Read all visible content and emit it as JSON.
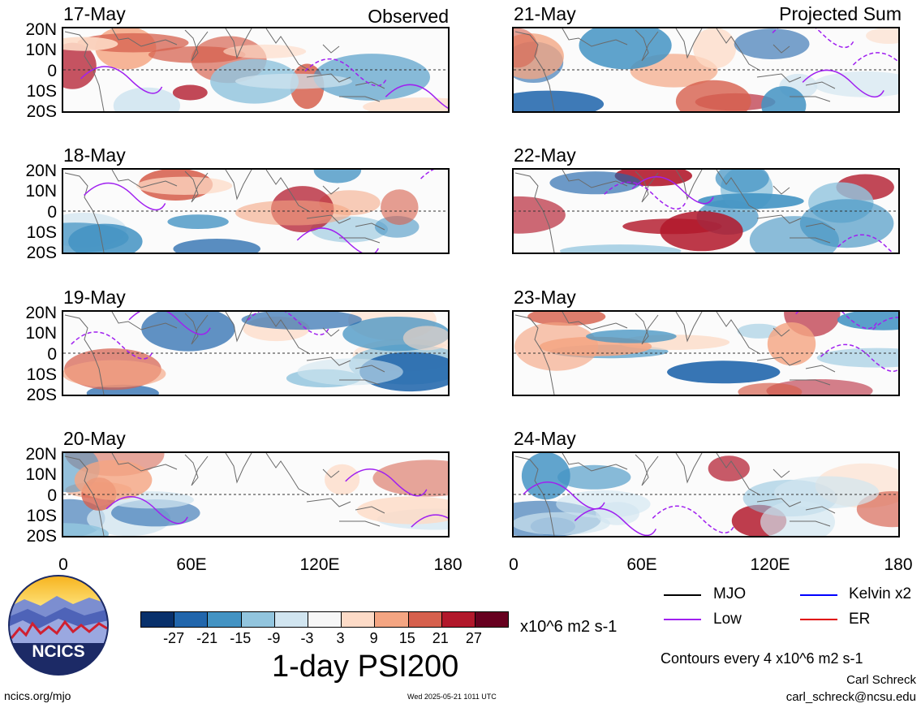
{
  "header": {
    "observed_label": "Observed",
    "projected_label": "Projected Sum"
  },
  "panels_left": [
    {
      "date": "17-May"
    },
    {
      "date": "18-May"
    },
    {
      "date": "19-May"
    },
    {
      "date": "20-May"
    }
  ],
  "panels_right": [
    {
      "date": "21-May"
    },
    {
      "date": "22-May"
    },
    {
      "date": "23-May"
    },
    {
      "date": "24-May"
    }
  ],
  "lat_labels": [
    "20N",
    "10N",
    "0",
    "10S",
    "20S"
  ],
  "lon_labels": [
    "0",
    "60E",
    "120E",
    "180"
  ],
  "colorbar": {
    "colors": [
      "#08306b",
      "#2166ac",
      "#4393c3",
      "#92c5de",
      "#d1e5f0",
      "#f7f7f7",
      "#fddbc7",
      "#f4a582",
      "#d6604d",
      "#b2182b",
      "#67001f"
    ],
    "ticks": [
      "-27",
      "-21",
      "-15",
      "-9",
      "-3",
      "3",
      "9",
      "15",
      "21",
      "27"
    ],
    "units": "x10^6 m2 s-1"
  },
  "title": "1-day PSI200",
  "legend": [
    {
      "label": "MJO",
      "color": "#000000"
    },
    {
      "label": "Kelvin x2",
      "color": "#0000ff"
    },
    {
      "label": "Low",
      "color": "#a020f0"
    },
    {
      "label": "ER",
      "color": "#e00000"
    }
  ],
  "contour_note": "Contours every 4 x10^6 m2 s-1",
  "author": "Carl Schreck",
  "email": "carl_schreck@ncsu.edu",
  "site": "ncics.org/mjo",
  "timestamp": "Wed 2025-05-21 1011 UTC",
  "logo_text": "NCICS"
}
